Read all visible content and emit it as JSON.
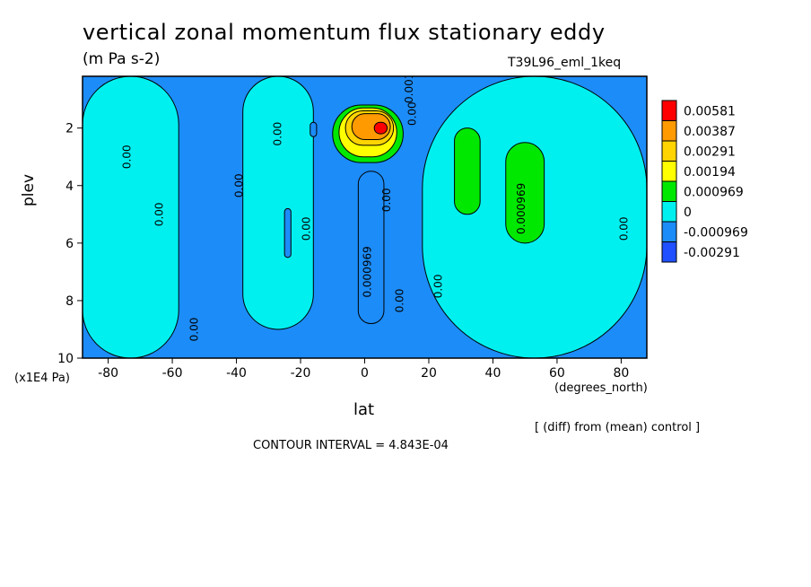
{
  "chart_data": {
    "type": "heatmap",
    "title": "vertical zonal momentum flux stationary eddy",
    "units": "(m Pa s-2)",
    "experiment": "T39L96_eml_1keq",
    "xlabel": "lat",
    "ylabel": "plev",
    "x_unit": "(degrees_north)",
    "y_unit": "(x1E4 Pa)",
    "xlim": [
      -88,
      88
    ],
    "ylim": [
      10,
      0.2
    ],
    "x_ticks": [
      "-80",
      "-60",
      "-40",
      "-20",
      "0",
      "20",
      "40",
      "60",
      "80"
    ],
    "y_ticks": [
      "2",
      "4",
      "6",
      "8",
      "10"
    ],
    "legend": {
      "placement": "right",
      "levels": [
        "0.00581",
        "0.00387",
        "0.00291",
        "0.00194",
        "0.000969",
        "0",
        "-0.000969",
        "-0.00291"
      ],
      "colors": [
        "#ff0000",
        "#ff9a00",
        "#ffd400",
        "#ffff00",
        "#00e800",
        "#00f0f0",
        "#1c8cf8",
        "#2050ff"
      ]
    },
    "contour_labels": [
      "0.00",
      "0.00",
      "0.00",
      "0.00",
      "0.00",
      "0.00",
      "0.00",
      "0.00",
      "0.00",
      "0.00",
      "0.001",
      "0.000969",
      "0.000969",
      "0.00"
    ],
    "background_color": "#1c8cf8",
    "regions": [
      {
        "level": "0",
        "lat": [
          -88,
          -58
        ],
        "plev": [
          0.2,
          10
        ]
      },
      {
        "level": "0",
        "lat": [
          -38,
          -16
        ],
        "plev": [
          0.2,
          9
        ]
      },
      {
        "level": "0",
        "lat": [
          18,
          88
        ],
        "plev": [
          0.2,
          10
        ]
      },
      {
        "level": "0.000969",
        "lat": [
          28,
          36
        ],
        "plev": [
          2,
          5
        ]
      },
      {
        "level": "0.000969",
        "lat": [
          44,
          56
        ],
        "plev": [
          2.5,
          6
        ]
      },
      {
        "level": "0.000969",
        "lat": [
          -10,
          12
        ],
        "plev": [
          1.2,
          3.2
        ]
      },
      {
        "level": "0.00194",
        "lat": [
          -8,
          10
        ],
        "plev": [
          1.3,
          3
        ]
      },
      {
        "level": "0.00291",
        "lat": [
          -6,
          9
        ],
        "plev": [
          1.4,
          2.6
        ]
      },
      {
        "level": "0.00387",
        "lat": [
          -4,
          8
        ],
        "plev": [
          1.5,
          2.4
        ]
      },
      {
        "level": "0.00581",
        "lat": [
          3,
          7
        ],
        "plev": [
          1.8,
          2.2
        ]
      },
      {
        "level": "-0.000969",
        "lat": [
          -2,
          6
        ],
        "plev": [
          3.5,
          8.8
        ]
      },
      {
        "level": "-0.000969",
        "lat": [
          -25,
          -23
        ],
        "plev": [
          4.8,
          6.5
        ]
      },
      {
        "level": "-0.000969",
        "lat": [
          -17,
          -15
        ],
        "plev": [
          1.8,
          2.3
        ]
      }
    ]
  },
  "annotations": {
    "diff": "[ (diff) from (mean) control ]",
    "contour_interval": "CONTOUR INTERVAL = 4.843E-04"
  }
}
